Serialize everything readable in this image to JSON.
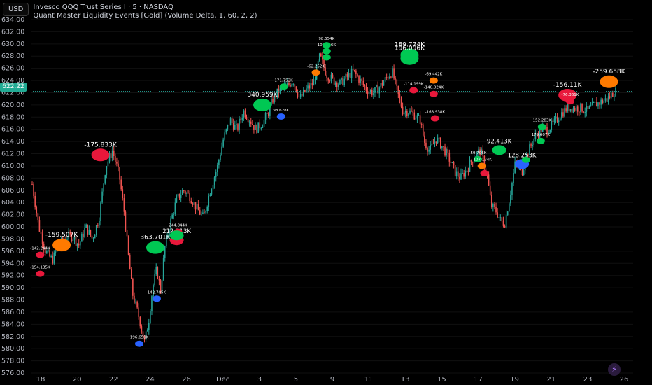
{
  "header": {
    "currency": "USD",
    "title": "Invesco QQQ Trust Series I · 5 · NASDAQ",
    "indicator": "Quant Master Liquidity Events [Gold] (Volume Delta, 1, 60, 2, 2)"
  },
  "colors": {
    "up": "#26a69a",
    "down": "#ef5350",
    "green": "#00c853",
    "red": "#e8183b",
    "orange": "#ff7a00",
    "blue": "#2962ff",
    "price_tag": "#22ab94"
  },
  "icons": {
    "flash": "lightning-icon"
  },
  "chart_data": {
    "type": "candlestick",
    "ylim": [
      576,
      634
    ],
    "y_ticks": [
      "576.00",
      "578.00",
      "580.00",
      "582.00",
      "584.00",
      "586.00",
      "588.00",
      "590.00",
      "592.00",
      "594.00",
      "596.00",
      "598.00",
      "600.00",
      "602.00",
      "604.00",
      "606.00",
      "608.00",
      "610.00",
      "612.00",
      "614.00",
      "616.00",
      "618.00",
      "620.00",
      "622.00",
      "624.00",
      "626.00",
      "628.00",
      "630.00",
      "632.00",
      "634.00"
    ],
    "x_ticks": [
      "18",
      "20",
      "22",
      "24",
      "26",
      "Dec",
      "3",
      "5",
      "9",
      "11",
      "13",
      "15",
      "17",
      "19",
      "21",
      "23",
      "26"
    ],
    "last_price": "622.22",
    "price_path": [
      [
        0,
        607.0
      ],
      [
        0.5,
        600.0
      ],
      [
        1,
        596.0
      ],
      [
        1.5,
        594.5
      ],
      [
        2,
        597.0
      ],
      [
        2.5,
        598.2
      ],
      [
        3,
        598.5
      ],
      [
        3.5,
        597.0
      ],
      [
        4,
        600.0
      ],
      [
        4.5,
        598.0
      ],
      [
        5,
        601.5
      ],
      [
        5.5,
        610.0
      ],
      [
        6,
        612.5
      ],
      [
        6.5,
        608.5
      ],
      [
        6.9,
        602.0
      ],
      [
        7.2,
        595.0
      ],
      [
        7.5,
        589.0
      ],
      [
        8,
        585.0
      ],
      [
        8.4,
        581.0
      ],
      [
        8.7,
        584.5
      ],
      [
        9,
        590.0
      ],
      [
        9.3,
        593.0
      ],
      [
        9.6,
        589.5
      ],
      [
        9.9,
        596.5
      ],
      [
        10.3,
        600.5
      ],
      [
        10.8,
        604.5
      ],
      [
        11.3,
        606.0
      ],
      [
        11.8,
        605.0
      ],
      [
        12.3,
        603.0
      ],
      [
        12.8,
        601.5
      ],
      [
        13.3,
        606.0
      ],
      [
        13.8,
        609.5
      ],
      [
        14.3,
        614.5
      ],
      [
        14.8,
        617.5
      ],
      [
        15.3,
        616.0
      ],
      [
        15.8,
        619.0
      ],
      [
        16.3,
        617.5
      ],
      [
        16.7,
        616.0
      ],
      [
        17.2,
        617.0
      ],
      [
        17.6,
        618.5
      ],
      [
        18,
        621.0
      ],
      [
        18.5,
        622.5
      ],
      [
        19,
        623.0
      ],
      [
        19.5,
        624.0
      ],
      [
        20,
        621.0
      ],
      [
        20.5,
        622.5
      ],
      [
        21,
        623.5
      ],
      [
        21.5,
        628.0
      ],
      [
        22,
        625.0
      ],
      [
        22.5,
        624.0
      ],
      [
        23,
        623.5
      ],
      [
        23.5,
        624.5
      ],
      [
        24,
        625.5
      ],
      [
        24.5,
        624.0
      ],
      [
        25,
        622.5
      ],
      [
        25.5,
        622.0
      ],
      [
        26,
        623.0
      ],
      [
        26.5,
        624.5
      ],
      [
        26.9,
        625.5
      ],
      [
        27.3,
        622.0
      ],
      [
        27.7,
        619.0
      ],
      [
        28.1,
        619.0
      ],
      [
        28.5,
        618.5
      ],
      [
        29,
        617.5
      ],
      [
        29.3,
        614.0
      ],
      [
        29.7,
        612.5
      ],
      [
        30.2,
        614.5
      ],
      [
        30.7,
        613.0
      ],
      [
        31.2,
        611.0
      ],
      [
        31.6,
        609.0
      ],
      [
        32,
        608.0
      ],
      [
        32.5,
        609.5
      ],
      [
        33,
        611.5
      ],
      [
        33.5,
        612.5
      ],
      [
        34,
        608.5
      ],
      [
        34.3,
        603.5
      ],
      [
        34.7,
        602.5
      ],
      [
        35,
        601.0
      ],
      [
        35.3,
        600.5
      ],
      [
        35.7,
        605.0
      ],
      [
        36.1,
        610.5
      ],
      [
        36.6,
        609.0
      ],
      [
        37,
        612.0
      ],
      [
        37.5,
        614.5
      ],
      [
        38,
        616.0
      ],
      [
        38.5,
        616.0
      ],
      [
        39,
        617.0
      ],
      [
        39.5,
        618.5
      ],
      [
        40,
        619.5
      ],
      [
        40.5,
        619.5
      ],
      [
        41,
        619.5
      ],
      [
        41.5,
        619.0
      ],
      [
        42,
        620.0
      ],
      [
        42.5,
        620.5
      ],
      [
        43,
        621.0
      ],
      [
        43.5,
        622.2
      ]
    ],
    "events": [
      {
        "t": 0.6,
        "p": 592.3,
        "color": "red",
        "size": "s",
        "label": "-154.135K",
        "lo": -1
      },
      {
        "t": 0.6,
        "p": 595.4,
        "color": "red",
        "size": "s",
        "label": "-142.244K",
        "lo": -1
      },
      {
        "t": 2.2,
        "p": 597.0,
        "color": "orange",
        "size": "l",
        "label": "-159.507K",
        "lo": -1
      },
      {
        "t": 5.1,
        "p": 611.8,
        "color": "red",
        "size": "l",
        "label": "-175.833K",
        "lo": -1
      },
      {
        "t": 8.0,
        "p": 580.8,
        "color": "blue",
        "size": "s",
        "label": "196.658K",
        "lo": -1
      },
      {
        "t": 9.2,
        "p": 596.6,
        "color": "green",
        "size": "l",
        "label": "363.701K",
        "lo": -1
      },
      {
        "t": 9.3,
        "p": 588.2,
        "color": "blue",
        "size": "s",
        "label": "142.705K",
        "lo": -1
      },
      {
        "t": 10.8,
        "p": 597.8,
        "color": "red",
        "size": "m",
        "label": "212.213K",
        "lo": -1
      },
      {
        "t": 10.9,
        "p": 599.2,
        "color": "red",
        "size": "s",
        "label": "244.844K",
        "lo": -1
      },
      {
        "t": 10.8,
        "p": 598.6,
        "color": "green",
        "size": "m",
        "label": "",
        "lo": -1
      },
      {
        "t": 17.2,
        "p": 620.0,
        "color": "green",
        "size": "l",
        "label": "340.959K",
        "lo": -1
      },
      {
        "t": 18.6,
        "p": 618.1,
        "color": "blue",
        "size": "s",
        "label": "98.628K",
        "lo": -1
      },
      {
        "t": 18.8,
        "p": 623.0,
        "color": "green",
        "size": "s",
        "label": "171.753K",
        "lo": -1
      },
      {
        "t": 21.2,
        "p": 625.3,
        "color": "orange",
        "size": "s",
        "label": "-62.252K",
        "lo": -1
      },
      {
        "t": 22.0,
        "p": 627.8,
        "color": "green",
        "size": "s",
        "label": "",
        "lo": -1
      },
      {
        "t": 22.0,
        "p": 628.8,
        "color": "green",
        "size": "s",
        "label": "107.516K",
        "lo": -1
      },
      {
        "t": 22.0,
        "p": 629.8,
        "color": "green",
        "size": "s",
        "label": "98.554K",
        "lo": -1
      },
      {
        "t": 28.2,
        "p": 628.2,
        "color": "green",
        "size": "l",
        "label": "189.774K",
        "lo": -1
      },
      {
        "t": 28.2,
        "p": 627.6,
        "color": "green",
        "size": "l",
        "label": "196.096K",
        "lo": -1
      },
      {
        "t": 28.5,
        "p": 622.4,
        "color": "red",
        "size": "s",
        "label": "-114.199K",
        "lo": -1
      },
      {
        "t": 30.0,
        "p": 624.0,
        "color": "orange",
        "size": "s",
        "label": "-69.442K",
        "lo": -1
      },
      {
        "t": 30.0,
        "p": 621.8,
        "color": "red",
        "size": "s",
        "label": "-140.024K",
        "lo": -1
      },
      {
        "t": 30.1,
        "p": 617.8,
        "color": "red",
        "size": "s",
        "label": "-163.938K",
        "lo": -1
      },
      {
        "t": 33.3,
        "p": 611.1,
        "color": "green",
        "size": "s",
        "label": "-59.706K",
        "lo": -1
      },
      {
        "t": 33.6,
        "p": 610.0,
        "color": "orange",
        "size": "s",
        "label": "-107.134K",
        "lo": -1
      },
      {
        "t": 33.8,
        "p": 608.8,
        "color": "red",
        "size": "s",
        "label": "",
        "lo": -1
      },
      {
        "t": 34.9,
        "p": 612.6,
        "color": "green",
        "size": "m",
        "label": "92.413K",
        "lo": -1
      },
      {
        "t": 36.6,
        "p": 610.3,
        "color": "blue",
        "size": "m",
        "label": "128.253K",
        "lo": -1
      },
      {
        "t": 36.9,
        "p": 611.0,
        "color": "green",
        "size": "s",
        "label": "",
        "lo": -1
      },
      {
        "t": 38.0,
        "p": 614.1,
        "color": "green",
        "size": "s",
        "label": "179.607K",
        "lo": -1
      },
      {
        "t": 38.1,
        "p": 616.4,
        "color": "green",
        "size": "s",
        "label": "152.283K",
        "lo": -1
      },
      {
        "t": 40.0,
        "p": 621.6,
        "color": "red",
        "size": "l",
        "label": "-156.11K",
        "lo": -1
      },
      {
        "t": 40.2,
        "p": 620.6,
        "color": "red",
        "size": "s",
        "label": "-76.361K",
        "lo": -1
      },
      {
        "t": 43.1,
        "p": 623.8,
        "color": "orange",
        "size": "l",
        "label": "-259.658K",
        "lo": -1
      }
    ]
  }
}
